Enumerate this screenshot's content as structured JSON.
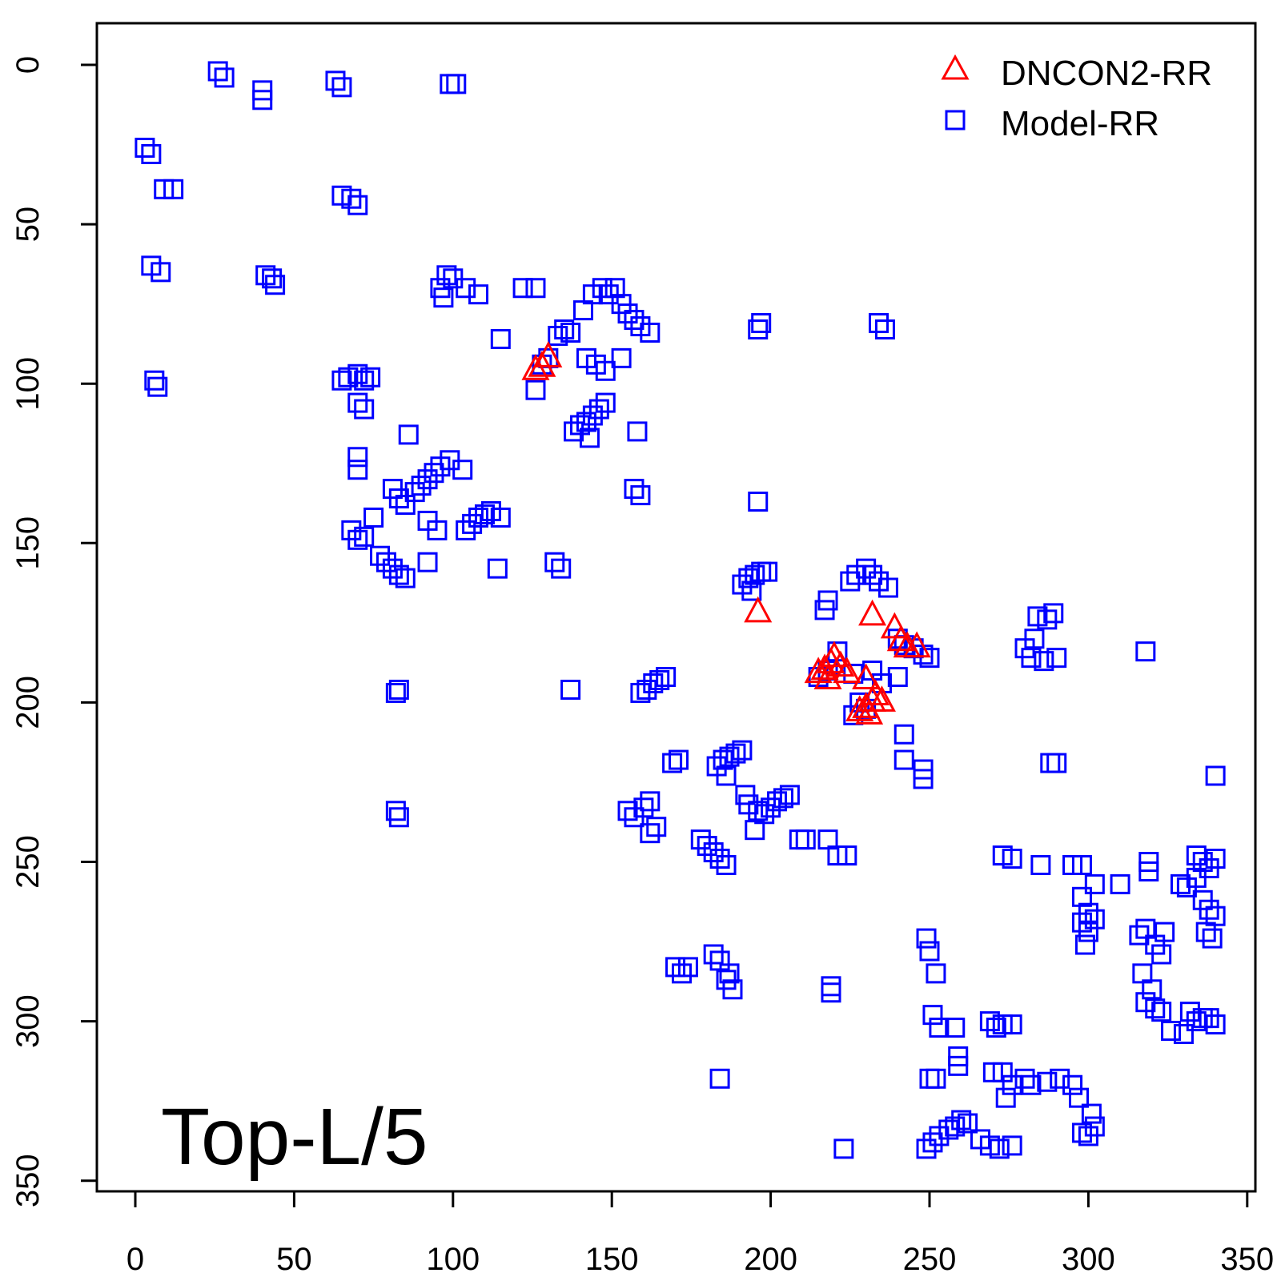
{
  "chart_data": {
    "type": "scatter",
    "title": "",
    "xlabel": "",
    "ylabel": "",
    "xlim": [
      -12,
      350
    ],
    "ylim": [
      -13,
      352
    ],
    "y_inverted": true,
    "x_ticks": [
      0,
      50,
      100,
      150,
      200,
      250,
      300,
      350
    ],
    "y_ticks": [
      0,
      50,
      100,
      150,
      200,
      250,
      300,
      350
    ],
    "x_tick_labels": [
      "0",
      "50",
      "100",
      "150",
      "200",
      "250",
      "300",
      "350"
    ],
    "y_tick_labels": [
      "0",
      "50",
      "100",
      "150",
      "200",
      "250",
      "300",
      "350"
    ],
    "grid": false,
    "legend_position": "top-right",
    "panel_label": "Top-L/5",
    "series": [
      {
        "name": "DNCON2-RR",
        "marker": "triangle",
        "color": "#ff0000",
        "points": [
          [
            126,
            95
          ],
          [
            128,
            94
          ],
          [
            130,
            91
          ],
          [
            196,
            171
          ],
          [
            232,
            172
          ],
          [
            239,
            176
          ],
          [
            241,
            180
          ],
          [
            243,
            182
          ],
          [
            246,
            182
          ],
          [
            215,
            190
          ],
          [
            217,
            189
          ],
          [
            219,
            187
          ],
          [
            220,
            185
          ],
          [
            222,
            188
          ],
          [
            224,
            190
          ],
          [
            218,
            192
          ],
          [
            230,
            192
          ],
          [
            228,
            202
          ],
          [
            230,
            201
          ],
          [
            232,
            199
          ],
          [
            233,
            197
          ],
          [
            235,
            199
          ],
          [
            231,
            203
          ]
        ]
      },
      {
        "name": "Model-RR",
        "marker": "square",
        "color": "#0000ff",
        "points": [
          [
            26,
            2
          ],
          [
            28,
            4
          ],
          [
            40,
            8
          ],
          [
            40,
            11
          ],
          [
            63,
            5
          ],
          [
            65,
            7
          ],
          [
            99,
            6
          ],
          [
            101,
            6
          ],
          [
            3,
            26
          ],
          [
            5,
            28
          ],
          [
            9,
            39
          ],
          [
            12,
            39
          ],
          [
            65,
            41
          ],
          [
            68,
            42
          ],
          [
            70,
            44
          ],
          [
            5,
            63
          ],
          [
            8,
            65
          ],
          [
            41,
            66
          ],
          [
            43,
            67
          ],
          [
            44,
            69
          ],
          [
            96,
            70
          ],
          [
            97,
            73
          ],
          [
            98,
            66
          ],
          [
            100,
            67
          ],
          [
            104,
            70
          ],
          [
            108,
            72
          ],
          [
            122,
            70
          ],
          [
            126,
            70
          ],
          [
            144,
            72
          ],
          [
            147,
            70
          ],
          [
            149,
            72
          ],
          [
            151,
            70
          ],
          [
            153,
            75
          ],
          [
            155,
            78
          ],
          [
            157,
            80
          ],
          [
            159,
            82
          ],
          [
            162,
            84
          ],
          [
            141,
            77
          ],
          [
            115,
            86
          ],
          [
            128,
            94
          ],
          [
            126,
            102
          ],
          [
            130,
            92
          ],
          [
            133,
            85
          ],
          [
            135,
            83
          ],
          [
            137,
            84
          ],
          [
            142,
            92
          ],
          [
            145,
            94
          ],
          [
            148,
            96
          ],
          [
            153,
            92
          ],
          [
            197,
            81
          ],
          [
            196,
            83
          ],
          [
            234,
            81
          ],
          [
            236,
            83
          ],
          [
            6,
            99
          ],
          [
            7,
            101
          ],
          [
            65,
            99
          ],
          [
            67,
            98
          ],
          [
            70,
            97
          ],
          [
            72,
            99
          ],
          [
            74,
            98
          ],
          [
            70,
            106
          ],
          [
            72,
            108
          ],
          [
            140,
            113
          ],
          [
            142,
            112
          ],
          [
            144,
            110
          ],
          [
            146,
            108
          ],
          [
            148,
            106
          ],
          [
            138,
            115
          ],
          [
            143,
            117
          ],
          [
            158,
            115
          ],
          [
            86,
            116
          ],
          [
            70,
            123
          ],
          [
            70,
            127
          ],
          [
            88,
            134
          ],
          [
            90,
            132
          ],
          [
            92,
            130
          ],
          [
            94,
            128
          ],
          [
            96,
            126
          ],
          [
            99,
            124
          ],
          [
            103,
            127
          ],
          [
            81,
            133
          ],
          [
            83,
            136
          ],
          [
            85,
            138
          ],
          [
            92,
            143
          ],
          [
            95,
            146
          ],
          [
            157,
            133
          ],
          [
            159,
            135
          ],
          [
            196,
            137
          ],
          [
            68,
            146
          ],
          [
            70,
            149
          ],
          [
            72,
            148
          ],
          [
            75,
            142
          ],
          [
            77,
            154
          ],
          [
            79,
            156
          ],
          [
            81,
            158
          ],
          [
            83,
            160
          ],
          [
            85,
            161
          ],
          [
            104,
            146
          ],
          [
            106,
            144
          ],
          [
            108,
            142
          ],
          [
            110,
            141
          ],
          [
            112,
            140
          ],
          [
            115,
            142
          ],
          [
            92,
            156
          ],
          [
            114,
            158
          ],
          [
            132,
            156
          ],
          [
            134,
            158
          ],
          [
            191,
            163
          ],
          [
            193,
            161
          ],
          [
            195,
            160
          ],
          [
            197,
            159
          ],
          [
            199,
            159
          ],
          [
            194,
            165
          ],
          [
            225,
            162
          ],
          [
            227,
            160
          ],
          [
            230,
            158
          ],
          [
            232,
            160
          ],
          [
            234,
            162
          ],
          [
            237,
            164
          ],
          [
            218,
            168
          ],
          [
            217,
            171
          ],
          [
            240,
            180
          ],
          [
            242,
            182
          ],
          [
            245,
            183
          ],
          [
            248,
            185
          ],
          [
            250,
            186
          ],
          [
            221,
            184
          ],
          [
            215,
            192
          ],
          [
            218,
            190
          ],
          [
            226,
            191
          ],
          [
            232,
            190
          ],
          [
            235,
            194
          ],
          [
            240,
            192
          ],
          [
            228,
            200
          ],
          [
            230,
            202
          ],
          [
            226,
            204
          ],
          [
            242,
            210
          ],
          [
            242,
            218
          ],
          [
            248,
            221
          ],
          [
            248,
            224
          ],
          [
            159,
            197
          ],
          [
            161,
            196
          ],
          [
            163,
            194
          ],
          [
            165,
            193
          ],
          [
            167,
            192
          ],
          [
            137,
            196
          ],
          [
            82,
            197
          ],
          [
            83,
            196
          ],
          [
            318,
            184
          ],
          [
            280,
            183
          ],
          [
            282,
            186
          ],
          [
            286,
            187
          ],
          [
            283,
            180
          ],
          [
            284,
            173
          ],
          [
            287,
            174
          ],
          [
            289,
            172
          ],
          [
            290,
            186
          ],
          [
            288,
            219
          ],
          [
            290,
            219
          ],
          [
            171,
            218
          ],
          [
            169,
            219
          ],
          [
            183,
            220
          ],
          [
            185,
            218
          ],
          [
            187,
            217
          ],
          [
            189,
            216
          ],
          [
            191,
            215
          ],
          [
            186,
            223
          ],
          [
            340,
            223
          ],
          [
            155,
            234
          ],
          [
            157,
            236
          ],
          [
            160,
            233
          ],
          [
            162,
            231
          ],
          [
            164,
            239
          ],
          [
            162,
            241
          ],
          [
            192,
            229
          ],
          [
            193,
            232
          ],
          [
            196,
            234
          ],
          [
            198,
            235
          ],
          [
            200,
            233
          ],
          [
            202,
            231
          ],
          [
            204,
            230
          ],
          [
            206,
            229
          ],
          [
            195,
            240
          ],
          [
            82,
            234
          ],
          [
            83,
            236
          ],
          [
            178,
            243
          ],
          [
            180,
            245
          ],
          [
            182,
            247
          ],
          [
            184,
            249
          ],
          [
            186,
            251
          ],
          [
            209,
            243
          ],
          [
            211,
            243
          ],
          [
            218,
            243
          ],
          [
            221,
            248
          ],
          [
            224,
            248
          ],
          [
            273,
            248
          ],
          [
            276,
            249
          ],
          [
            285,
            251
          ],
          [
            295,
            251
          ],
          [
            298,
            251
          ],
          [
            302,
            257
          ],
          [
            298,
            261
          ],
          [
            300,
            266
          ],
          [
            319,
            250
          ],
          [
            319,
            253
          ],
          [
            334,
            248
          ],
          [
            336,
            250
          ],
          [
            338,
            252
          ],
          [
            340,
            249
          ],
          [
            329,
            257
          ],
          [
            331,
            258
          ],
          [
            334,
            255
          ],
          [
            336,
            262
          ],
          [
            338,
            265
          ],
          [
            340,
            267
          ],
          [
            337,
            272
          ],
          [
            339,
            274
          ],
          [
            310,
            257
          ],
          [
            298,
            269
          ],
          [
            300,
            272
          ],
          [
            302,
            268
          ],
          [
            299,
            276
          ],
          [
            318,
            271
          ],
          [
            321,
            276
          ],
          [
            323,
            279
          ],
          [
            316,
            273
          ],
          [
            324,
            272
          ],
          [
            317,
            285
          ],
          [
            320,
            290
          ],
          [
            318,
            294
          ],
          [
            321,
            296
          ],
          [
            170,
            283
          ],
          [
            172,
            285
          ],
          [
            174,
            283
          ],
          [
            182,
            279
          ],
          [
            184,
            281
          ],
          [
            186,
            287
          ],
          [
            188,
            290
          ],
          [
            187,
            285
          ],
          [
            219,
            289
          ],
          [
            219,
            291
          ],
          [
            249,
            274
          ],
          [
            250,
            278
          ],
          [
            252,
            285
          ],
          [
            251,
            298
          ],
          [
            253,
            302
          ],
          [
            258,
            302
          ],
          [
            259,
            311
          ],
          [
            259,
            314
          ],
          [
            269,
            300
          ],
          [
            271,
            302
          ],
          [
            273,
            301
          ],
          [
            276,
            301
          ],
          [
            332,
            297
          ],
          [
            334,
            300
          ],
          [
            336,
            299
          ],
          [
            338,
            299
          ],
          [
            340,
            301
          ],
          [
            330,
            304
          ],
          [
            326,
            303
          ],
          [
            323,
            297
          ],
          [
            184,
            318
          ],
          [
            250,
            318
          ],
          [
            252,
            318
          ],
          [
            270,
            316
          ],
          [
            273,
            316
          ],
          [
            276,
            320
          ],
          [
            274,
            324
          ],
          [
            280,
            318
          ],
          [
            282,
            320
          ],
          [
            287,
            319
          ],
          [
            291,
            318
          ],
          [
            295,
            320
          ],
          [
            297,
            324
          ],
          [
            301,
            329
          ],
          [
            223,
            340
          ],
          [
            249,
            340
          ],
          [
            251,
            338
          ],
          [
            253,
            336
          ],
          [
            256,
            334
          ],
          [
            258,
            333
          ],
          [
            260,
            331
          ],
          [
            262,
            332
          ],
          [
            266,
            337
          ],
          [
            269,
            339
          ],
          [
            272,
            340
          ],
          [
            276,
            339
          ],
          [
            298,
            335
          ],
          [
            300,
            336
          ],
          [
            302,
            333
          ]
        ]
      }
    ]
  },
  "legend": {
    "position": "top-right",
    "entries": [
      {
        "label": "DNCON2-RR",
        "marker": "triangle",
        "color": "#ff0000"
      },
      {
        "label": "Model-RR",
        "marker": "square",
        "color": "#0000ff"
      }
    ]
  }
}
